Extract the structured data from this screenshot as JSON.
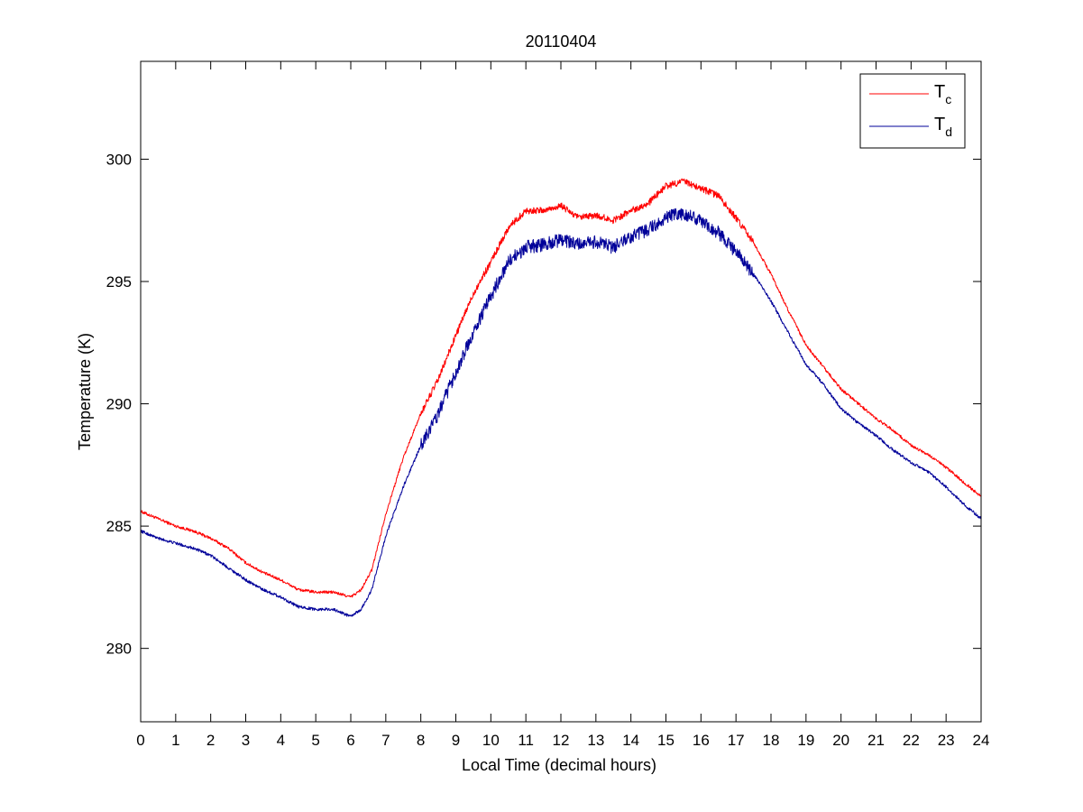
{
  "chart_data": {
    "type": "line",
    "title": "20110404",
    "xlabel": "Local Time (decimal hours)",
    "ylabel": "Temperature (K)",
    "xlim": [
      0,
      24
    ],
    "ylim": [
      277,
      304
    ],
    "xticks": [
      0,
      1,
      2,
      3,
      4,
      5,
      6,
      7,
      8,
      9,
      10,
      11,
      12,
      13,
      14,
      15,
      16,
      17,
      18,
      19,
      20,
      21,
      22,
      23,
      24
    ],
    "yticks": [
      280,
      285,
      290,
      295,
      300
    ],
    "grid": false,
    "legend_position": "top-right",
    "series": [
      {
        "name": "T",
        "name_subscript": "c",
        "color": "#ff0000",
        "x": [
          0,
          0.5,
          1,
          1.5,
          2,
          2.5,
          3,
          3.5,
          4,
          4.5,
          5,
          5.5,
          6,
          6.3,
          6.6,
          7,
          7.5,
          8,
          8.5,
          9,
          9.5,
          10,
          10.5,
          11,
          11.5,
          12,
          12.5,
          13,
          13.5,
          14,
          14.5,
          15,
          15.5,
          16,
          16.5,
          17,
          17.5,
          18,
          18.5,
          19,
          19.5,
          20,
          20.5,
          21,
          21.5,
          22,
          22.5,
          23,
          23.5,
          24
        ],
        "y": [
          285.6,
          285.3,
          285.0,
          284.8,
          284.5,
          284.1,
          283.5,
          283.1,
          282.8,
          282.4,
          282.3,
          282.3,
          282.1,
          282.4,
          283.2,
          285.5,
          287.8,
          289.6,
          291.0,
          292.8,
          294.5,
          295.8,
          297.2,
          297.9,
          297.9,
          298.1,
          297.6,
          297.7,
          297.5,
          297.9,
          298.2,
          298.9,
          299.1,
          298.8,
          298.5,
          297.6,
          296.6,
          295.3,
          293.8,
          292.4,
          291.5,
          290.6,
          290.0,
          289.4,
          288.9,
          288.3,
          287.9,
          287.4,
          286.8,
          286.2
        ]
      },
      {
        "name": "T",
        "name_subscript": "d",
        "color": "#000099",
        "x": [
          0,
          0.5,
          1,
          1.5,
          2,
          2.5,
          3,
          3.5,
          4,
          4.5,
          5,
          5.5,
          6,
          6.3,
          6.6,
          7,
          7.5,
          8,
          8.5,
          9,
          9.5,
          10,
          10.5,
          11,
          11.5,
          12,
          12.5,
          13,
          13.5,
          14,
          14.5,
          15,
          15.5,
          16,
          16.5,
          17,
          17.5,
          18,
          18.5,
          19,
          19.5,
          20,
          20.5,
          21,
          21.5,
          22,
          22.5,
          23,
          23.5,
          24
        ],
        "y": [
          284.8,
          284.5,
          284.3,
          284.1,
          283.8,
          283.3,
          282.8,
          282.4,
          282.1,
          281.7,
          281.6,
          281.6,
          281.3,
          281.6,
          282.4,
          284.6,
          286.6,
          288.3,
          289.6,
          291.3,
          292.9,
          294.4,
          295.8,
          296.4,
          296.5,
          296.7,
          296.5,
          296.6,
          296.4,
          296.8,
          297.1,
          297.6,
          297.8,
          297.5,
          297.0,
          296.2,
          295.3,
          294.2,
          292.9,
          291.6,
          290.8,
          289.8,
          289.2,
          288.7,
          288.1,
          287.6,
          287.2,
          286.6,
          285.9,
          285.3
        ]
      }
    ]
  }
}
